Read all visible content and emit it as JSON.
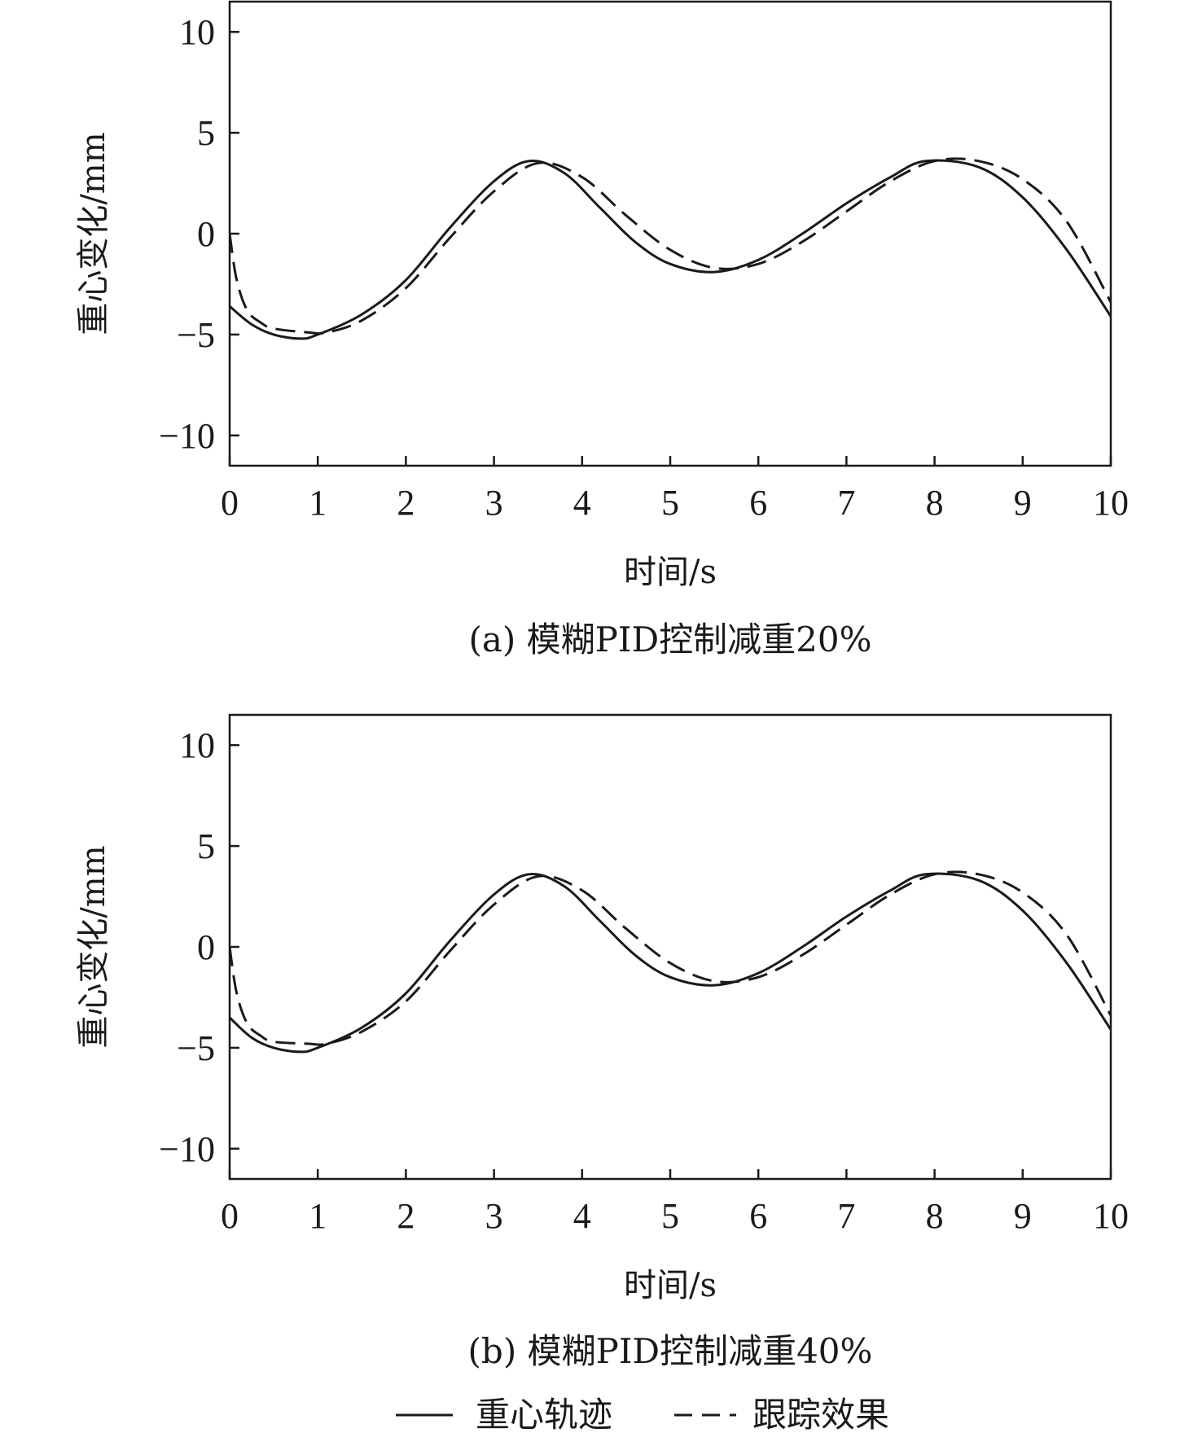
{
  "chart_data": [
    {
      "type": "line",
      "caption": "(a) 模糊PID控制减重20%",
      "xlabel": "时间/s",
      "ylabel": "重心变化/mm",
      "xlim": [
        0,
        10
      ],
      "ylim": [
        -11.5,
        11.5
      ],
      "xticks": [
        "0",
        "1",
        "2",
        "3",
        "4",
        "5",
        "6",
        "7",
        "8",
        "9",
        "10"
      ],
      "yticks": [
        "10",
        "5",
        "0",
        "−5",
        "−10"
      ],
      "series": [
        {
          "name": "重心轨迹",
          "style": "solid",
          "x": [
            0,
            0.25,
            0.5,
            0.8,
            1.0,
            1.5,
            2.0,
            2.5,
            3.0,
            3.4,
            3.8,
            4.2,
            4.6,
            5.0,
            5.5,
            6.0,
            6.5,
            7.0,
            7.5,
            7.9,
            8.5,
            9.0,
            9.5,
            10.0
          ],
          "values": [
            -3.6,
            -4.5,
            -5.0,
            -5.2,
            -5.0,
            -4.0,
            -2.3,
            0.3,
            2.6,
            3.6,
            3.0,
            1.3,
            -0.4,
            -1.5,
            -1.9,
            -1.3,
            0.0,
            1.5,
            2.8,
            3.6,
            3.3,
            1.8,
            -0.8,
            -4.1
          ]
        },
        {
          "name": "跟踪效果",
          "style": "dashed",
          "x": [
            0,
            0.08,
            0.2,
            0.35,
            0.5,
            0.9,
            1.1,
            1.5,
            2.0,
            2.5,
            3.0,
            3.5,
            4.0,
            4.5,
            5.0,
            5.5,
            6.0,
            6.5,
            7.0,
            7.5,
            8.0,
            8.5,
            9.0,
            9.5,
            10.0
          ],
          "values": [
            0.0,
            -2.3,
            -3.8,
            -4.4,
            -4.7,
            -4.9,
            -4.9,
            -4.3,
            -2.7,
            -0.2,
            2.1,
            3.5,
            2.8,
            0.9,
            -0.8,
            -1.7,
            -1.5,
            -0.4,
            1.1,
            2.6,
            3.6,
            3.6,
            2.7,
            0.6,
            -3.4
          ]
        }
      ]
    },
    {
      "type": "line",
      "caption": "(b) 模糊PID控制减重40%",
      "xlabel": "时间/s",
      "ylabel": "重心变化/mm",
      "xlim": [
        0,
        10
      ],
      "ylim": [
        -11.5,
        11.5
      ],
      "xticks": [
        "0",
        "1",
        "2",
        "3",
        "4",
        "5",
        "6",
        "7",
        "8",
        "9",
        "10"
      ],
      "yticks": [
        "10",
        "5",
        "0",
        "−5",
        "−10"
      ],
      "series": [
        {
          "name": "重心轨迹",
          "style": "solid",
          "x": [
            0,
            0.25,
            0.5,
            0.8,
            1.0,
            1.5,
            2.0,
            2.5,
            3.0,
            3.4,
            3.8,
            4.2,
            4.6,
            5.0,
            5.5,
            6.0,
            6.5,
            7.0,
            7.5,
            7.9,
            8.5,
            9.0,
            9.5,
            10.0
          ],
          "values": [
            -3.5,
            -4.5,
            -5.0,
            -5.2,
            -5.0,
            -4.0,
            -2.3,
            0.3,
            2.6,
            3.6,
            3.0,
            1.3,
            -0.4,
            -1.5,
            -1.9,
            -1.3,
            0.0,
            1.5,
            2.8,
            3.6,
            3.3,
            1.8,
            -0.8,
            -4.1
          ]
        },
        {
          "name": "跟踪效果",
          "style": "dashed",
          "x": [
            0,
            0.08,
            0.2,
            0.35,
            0.5,
            0.9,
            1.1,
            1.5,
            2.0,
            2.5,
            3.0,
            3.5,
            4.0,
            4.5,
            5.0,
            5.5,
            6.0,
            6.5,
            7.0,
            7.5,
            8.0,
            8.5,
            9.0,
            9.5,
            10.0
          ],
          "values": [
            0.0,
            -2.3,
            -3.8,
            -4.4,
            -4.7,
            -4.8,
            -4.8,
            -4.2,
            -2.7,
            -0.2,
            2.1,
            3.5,
            2.8,
            0.9,
            -0.8,
            -1.7,
            -1.5,
            -0.4,
            1.1,
            2.6,
            3.6,
            3.6,
            2.7,
            0.6,
            -3.4
          ]
        }
      ]
    }
  ],
  "legend": {
    "placement": "bottom-center",
    "items": [
      {
        "label": "重心轨迹",
        "style": "solid"
      },
      {
        "label": "跟踪效果",
        "style": "dashed"
      }
    ]
  },
  "colors": {
    "line": "#1a1a1a",
    "axis": "#1a1a1a",
    "background": "#ffffff"
  }
}
